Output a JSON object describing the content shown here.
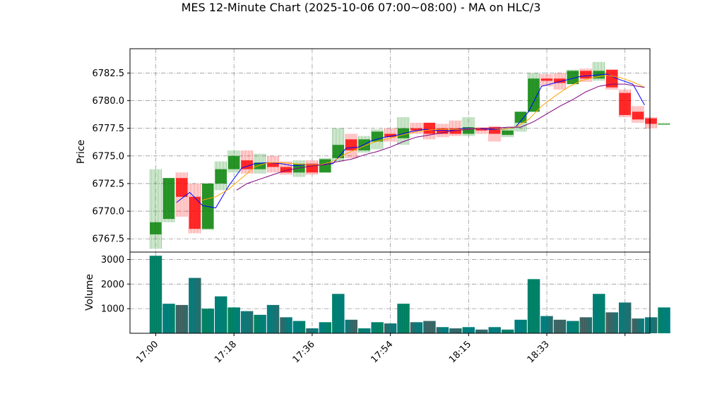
{
  "chart_data": {
    "type": "candlestick",
    "title": "MES 12-Minute Chart (2025-10-06 07:00~08:00) - MA on HLC/3",
    "price_panel": {
      "ylabel": "Price",
      "ylim": [
        6766.3,
        6784.7
      ],
      "yticks": [
        6767.5,
        6770.0,
        6772.5,
        6775.0,
        6777.5,
        6780.0,
        6782.5
      ],
      "ytick_labels": [
        "6767.5",
        "6770.0",
        "6772.5",
        "6775.0",
        "6777.5",
        "6780.0",
        "6782.5"
      ],
      "grid": true
    },
    "volume_panel": {
      "ylabel": "Volume",
      "ylim": [
        0,
        3300
      ],
      "yticks": [
        1000,
        2000,
        3000
      ],
      "ytick_labels": [
        "1000",
        "2000",
        "3000"
      ],
      "grid": true
    },
    "x_ticks": [
      {
        "index": 0,
        "label": "17:00"
      },
      {
        "index": 6,
        "label": "17:18"
      },
      {
        "index": 12,
        "label": "17:36"
      },
      {
        "index": 18,
        "label": "17:54"
      },
      {
        "index": 24,
        "label": "18:15"
      },
      {
        "index": 30,
        "label": "18:33"
      },
      {
        "index": 36,
        "label": ""
      }
    ],
    "bars": [
      {
        "o": 6767.9,
        "h": 6773.8,
        "l": 6766.6,
        "c": 6769.0,
        "v": 3150
      },
      {
        "o": 6769.3,
        "h": 6773.0,
        "l": 6769.0,
        "c": 6773.0,
        "v": 1200
      },
      {
        "o": 6773.0,
        "h": 6773.5,
        "l": 6769.5,
        "c": 6771.3,
        "v": 1150
      },
      {
        "o": 6771.3,
        "h": 6772.5,
        "l": 6768.0,
        "c": 6768.4,
        "v": 2250
      },
      {
        "o": 6768.4,
        "h": 6772.5,
        "l": 6768.3,
        "c": 6772.5,
        "v": 1000
      },
      {
        "o": 6772.5,
        "h": 6774.5,
        "l": 6771.9,
        "c": 6773.8,
        "v": 1500
      },
      {
        "o": 6773.8,
        "h": 6775.5,
        "l": 6773.5,
        "c": 6775.0,
        "v": 1050
      },
      {
        "o": 6774.6,
        "h": 6775.5,
        "l": 6773.4,
        "c": 6773.8,
        "v": 900
      },
      {
        "o": 6773.8,
        "h": 6775.2,
        "l": 6773.4,
        "c": 6774.4,
        "v": 750
      },
      {
        "o": 6774.4,
        "h": 6775.0,
        "l": 6773.5,
        "c": 6774.0,
        "v": 1150
      },
      {
        "o": 6774.0,
        "h": 6774.5,
        "l": 6773.3,
        "c": 6773.5,
        "v": 650
      },
      {
        "o": 6773.5,
        "h": 6774.6,
        "l": 6773.1,
        "c": 6774.3,
        "v": 500
      },
      {
        "o": 6774.3,
        "h": 6774.6,
        "l": 6773.3,
        "c": 6773.5,
        "v": 200
      },
      {
        "o": 6773.5,
        "h": 6774.8,
        "l": 6773.5,
        "c": 6774.7,
        "v": 450
      },
      {
        "o": 6774.8,
        "h": 6777.5,
        "l": 6774.5,
        "c": 6776.0,
        "v": 1600
      },
      {
        "o": 6776.5,
        "h": 6777.0,
        "l": 6774.8,
        "c": 6775.5,
        "v": 550
      },
      {
        "o": 6775.5,
        "h": 6776.8,
        "l": 6775.3,
        "c": 6776.5,
        "v": 200
      },
      {
        "o": 6776.3,
        "h": 6777.4,
        "l": 6775.6,
        "c": 6777.2,
        "v": 450
      },
      {
        "o": 6777.0,
        "h": 6777.5,
        "l": 6776.3,
        "c": 6776.7,
        "v": 400
      },
      {
        "o": 6776.6,
        "h": 6778.5,
        "l": 6776.0,
        "c": 6777.5,
        "v": 1200
      },
      {
        "o": 6777.5,
        "h": 6778.0,
        "l": 6777.0,
        "c": 6777.3,
        "v": 450
      },
      {
        "o": 6778.0,
        "h": 6778.0,
        "l": 6776.5,
        "c": 6777.0,
        "v": 500
      },
      {
        "o": 6777.5,
        "h": 6777.9,
        "l": 6776.7,
        "c": 6777.0,
        "v": 250
      },
      {
        "o": 6777.5,
        "h": 6778.2,
        "l": 6776.8,
        "c": 6777.0,
        "v": 200
      },
      {
        "o": 6777.0,
        "h": 6778.5,
        "l": 6776.8,
        "c": 6777.6,
        "v": 250
      },
      {
        "o": 6777.5,
        "h": 6777.6,
        "l": 6777.0,
        "c": 6777.3,
        "v": 150
      },
      {
        "o": 6777.6,
        "h": 6777.7,
        "l": 6776.3,
        "c": 6777.0,
        "v": 250
      },
      {
        "o": 6776.9,
        "h": 6777.6,
        "l": 6776.7,
        "c": 6777.3,
        "v": 150
      },
      {
        "o": 6778.0,
        "h": 6779.0,
        "l": 6777.2,
        "c": 6779.0,
        "v": 550
      },
      {
        "o": 6779.0,
        "h": 6782.5,
        "l": 6779.0,
        "c": 6782.0,
        "v": 2200
      },
      {
        "o": 6782.0,
        "h": 6782.4,
        "l": 6781.3,
        "c": 6781.8,
        "v": 700
      },
      {
        "o": 6782.0,
        "h": 6782.5,
        "l": 6781.0,
        "c": 6781.6,
        "v": 550
      },
      {
        "o": 6781.5,
        "h": 6782.8,
        "l": 6781.5,
        "c": 6782.7,
        "v": 500
      },
      {
        "o": 6782.7,
        "h": 6782.9,
        "l": 6781.7,
        "c": 6782.0,
        "v": 650
      },
      {
        "o": 6782.0,
        "h": 6783.5,
        "l": 6781.8,
        "c": 6782.7,
        "v": 1600
      },
      {
        "o": 6782.8,
        "h": 6782.8,
        "l": 6781.0,
        "c": 6781.2,
        "v": 850
      },
      {
        "o": 6780.7,
        "h": 6781.0,
        "l": 6778.5,
        "c": 6778.7,
        "v": 1250
      },
      {
        "o": 6779.0,
        "h": 6779.5,
        "l": 6778.0,
        "c": 6778.3,
        "v": 600
      },
      {
        "o": 6778.4,
        "h": 6778.5,
        "l": 6777.5,
        "c": 6777.9,
        "v": 650
      },
      {
        "o": 6777.9,
        "h": 6778.0,
        "l": 6777.8,
        "c": 6777.9,
        "v": 1050
      }
    ],
    "ma_lines": [
      {
        "color": "#0000ff",
        "points": [
          [
            1.6,
            6770.8
          ],
          [
            2.6,
            6771.7
          ],
          [
            3.6,
            6770.5
          ],
          [
            4.6,
            6770.3
          ],
          [
            5.6,
            6772.3
          ],
          [
            6.6,
            6773.9
          ],
          [
            7.6,
            6774.3
          ],
          [
            8.6,
            6774.4
          ],
          [
            9.6,
            6774.3
          ],
          [
            10.6,
            6774.1
          ],
          [
            11.6,
            6774.2
          ],
          [
            12.6,
            6774.2
          ],
          [
            13.6,
            6774.3
          ],
          [
            14.6,
            6775.7
          ],
          [
            15.6,
            6775.8
          ],
          [
            16.6,
            6776.4
          ],
          [
            17.6,
            6776.7
          ],
          [
            18.6,
            6776.9
          ],
          [
            19.6,
            6777.2
          ],
          [
            20.6,
            6777.4
          ],
          [
            21.6,
            6777.3
          ],
          [
            22.6,
            6777.3
          ],
          [
            23.6,
            6777.5
          ],
          [
            24.6,
            6777.5
          ],
          [
            25.6,
            6777.4
          ],
          [
            26.6,
            6777.4
          ],
          [
            27.6,
            6777.6
          ],
          [
            28.6,
            6779.0
          ],
          [
            29.6,
            6781.3
          ],
          [
            30.6,
            6781.6
          ],
          [
            31.6,
            6781.9
          ],
          [
            32.6,
            6782.2
          ],
          [
            33.6,
            6782.3
          ],
          [
            34.6,
            6782.4
          ],
          [
            35.6,
            6781.9
          ],
          [
            36.6,
            6781.5
          ],
          [
            37.5,
            6779.6
          ]
        ]
      },
      {
        "color": "#ffa500",
        "points": [
          [
            3.6,
            6771.0
          ],
          [
            4.6,
            6771.3
          ],
          [
            5.6,
            6772.0
          ],
          [
            6.6,
            6773.0
          ],
          [
            7.6,
            6774.0
          ],
          [
            8.6,
            6774.4
          ],
          [
            9.6,
            6774.4
          ],
          [
            10.6,
            6774.3
          ],
          [
            11.6,
            6774.2
          ],
          [
            12.6,
            6774.2
          ],
          [
            13.6,
            6774.5
          ],
          [
            14.6,
            6775.2
          ],
          [
            15.6,
            6775.7
          ],
          [
            16.6,
            6776.2
          ],
          [
            17.6,
            6776.5
          ],
          [
            18.6,
            6776.8
          ],
          [
            19.6,
            6777.1
          ],
          [
            20.6,
            6777.3
          ],
          [
            21.6,
            6777.4
          ],
          [
            22.6,
            6777.4
          ],
          [
            23.6,
            6777.4
          ],
          [
            24.6,
            6777.5
          ],
          [
            25.6,
            6777.5
          ],
          [
            26.6,
            6777.4
          ],
          [
            27.6,
            6777.6
          ],
          [
            28.6,
            6778.3
          ],
          [
            29.6,
            6779.5
          ],
          [
            30.6,
            6780.4
          ],
          [
            31.6,
            6781.2
          ],
          [
            32.6,
            6781.8
          ],
          [
            33.6,
            6782.1
          ],
          [
            34.6,
            6782.3
          ],
          [
            35.6,
            6782.1
          ],
          [
            36.6,
            6781.7
          ],
          [
            37.5,
            6781.2
          ]
        ]
      },
      {
        "color": "#800080",
        "points": [
          [
            6.2,
            6771.9
          ],
          [
            7.0,
            6772.5
          ],
          [
            8.0,
            6772.9
          ],
          [
            9.0,
            6773.3
          ],
          [
            10.0,
            6773.7
          ],
          [
            11.0,
            6773.9
          ],
          [
            12.0,
            6774.1
          ],
          [
            13.0,
            6774.2
          ],
          [
            14.0,
            6774.5
          ],
          [
            15.0,
            6774.7
          ],
          [
            16.0,
            6775.1
          ],
          [
            17.0,
            6775.4
          ],
          [
            18.0,
            6775.8
          ],
          [
            19.0,
            6776.3
          ],
          [
            20.0,
            6776.7
          ],
          [
            21.0,
            6776.9
          ],
          [
            22.0,
            6777.1
          ],
          [
            23.0,
            6777.3
          ],
          [
            24.0,
            6777.4
          ],
          [
            25.0,
            6777.5
          ],
          [
            26.0,
            6777.5
          ],
          [
            27.0,
            6777.6
          ],
          [
            28.0,
            6777.6
          ],
          [
            29.0,
            6778.1
          ],
          [
            30.0,
            6778.8
          ],
          [
            31.0,
            6779.5
          ],
          [
            32.0,
            6780.1
          ],
          [
            33.0,
            6780.8
          ],
          [
            34.0,
            6781.3
          ],
          [
            35.0,
            6781.5
          ],
          [
            36.0,
            6781.5
          ],
          [
            37.5,
            6781.2
          ]
        ]
      }
    ],
    "colors": {
      "up": "#008000",
      "down": "#ff0000",
      "grid": "#999999",
      "volume_fill": "#008080"
    }
  }
}
